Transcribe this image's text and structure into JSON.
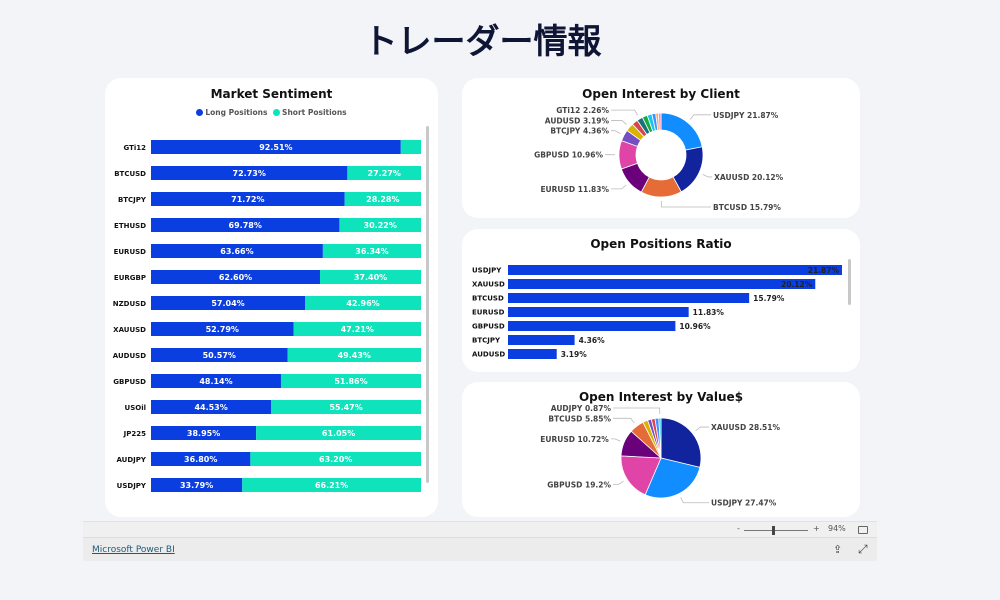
{
  "page_title": "トレーダー情報",
  "colors": {
    "long": "#0a3ee0",
    "short": "#0ee3bb",
    "bar": "#0a3ee0"
  },
  "market_sentiment": {
    "title": "Market Sentiment",
    "legend": [
      "Long Positions",
      "Short Positions"
    ],
    "rows": [
      {
        "symbol": "GTi12",
        "long": 92.51,
        "long_label": "92.51%",
        "short_label": ""
      },
      {
        "symbol": "BTCUSD",
        "long": 72.73,
        "long_label": "72.73%",
        "short_label": "27.27%"
      },
      {
        "symbol": "BTCJPY",
        "long": 71.72,
        "long_label": "71.72%",
        "short_label": "28.28%"
      },
      {
        "symbol": "ETHUSD",
        "long": 69.78,
        "long_label": "69.78%",
        "short_label": "30.22%"
      },
      {
        "symbol": "EURUSD",
        "long": 63.66,
        "long_label": "63.66%",
        "short_label": "36.34%"
      },
      {
        "symbol": "EURGBP",
        "long": 62.6,
        "long_label": "62.60%",
        "short_label": "37.40%"
      },
      {
        "symbol": "NZDUSD",
        "long": 57.04,
        "long_label": "57.04%",
        "short_label": "42.96%"
      },
      {
        "symbol": "XAUUSD",
        "long": 52.79,
        "long_label": "52.79%",
        "short_label": "47.21%"
      },
      {
        "symbol": "AUDUSD",
        "long": 50.57,
        "long_label": "50.57%",
        "short_label": "49.43%"
      },
      {
        "symbol": "GBPUSD",
        "long": 48.14,
        "long_label": "48.14%",
        "short_label": "51.86%"
      },
      {
        "symbol": "USOil",
        "long": 44.53,
        "long_label": "44.53%",
        "short_label": "55.47%"
      },
      {
        "symbol": "JP225",
        "long": 38.95,
        "long_label": "38.95%",
        "short_label": "61.05%"
      },
      {
        "symbol": "AUDJPY",
        "long": 36.8,
        "long_label": "36.80%",
        "short_label": "63.20%"
      },
      {
        "symbol": "USDJPY",
        "long": 33.79,
        "long_label": "33.79%",
        "short_label": "66.21%"
      }
    ]
  },
  "open_interest_client": {
    "title": "Open Interest by Client",
    "slices": [
      {
        "label": "USDJPY 21.87%",
        "value": 21.87,
        "color": "#118dff"
      },
      {
        "label": "XAUUSD 20.12%",
        "value": 20.12,
        "color": "#12239e"
      },
      {
        "label": "BTCUSD 15.79%",
        "value": 15.79,
        "color": "#e66c37"
      },
      {
        "label": "EURUSD 11.83%",
        "value": 11.83,
        "color": "#6b007b"
      },
      {
        "label": "GBPUSD 10.96%",
        "value": 10.96,
        "color": "#e044a7"
      },
      {
        "label": "BTCJPY 4.36%",
        "value": 4.36,
        "color": "#744ec2"
      },
      {
        "label": "AUDUSD 3.19%",
        "value": 3.19,
        "color": "#d9b300"
      },
      {
        "label": "",
        "value": 2.3,
        "color": "#d64550"
      },
      {
        "label": "GTi12 2.26%",
        "value": 2.26,
        "color": "#197278"
      },
      {
        "label": "",
        "value": 2.0,
        "color": "#1aab40"
      },
      {
        "label": "",
        "value": 1.8,
        "color": "#15c6f4"
      },
      {
        "label": "",
        "value": 1.5,
        "color": "#4092ff"
      },
      {
        "label": "",
        "value": 1.0,
        "color": "#ffa058"
      },
      {
        "label": "",
        "value": 1.02,
        "color": "#e88fc0"
      }
    ]
  },
  "open_positions_ratio": {
    "title": "Open Positions Ratio",
    "rows": [
      {
        "symbol": "USDJPY",
        "value": 21.87,
        "label": "21.87%"
      },
      {
        "symbol": "XAUUSD",
        "value": 20.12,
        "label": "20.12%"
      },
      {
        "symbol": "BTCUSD",
        "value": 15.79,
        "label": "15.79%"
      },
      {
        "symbol": "EURUSD",
        "value": 11.83,
        "label": "11.83%"
      },
      {
        "symbol": "GBPUSD",
        "value": 10.96,
        "label": "10.96%"
      },
      {
        "symbol": "BTCJPY",
        "value": 4.36,
        "label": "4.36%"
      },
      {
        "symbol": "AUDUSD",
        "value": 3.19,
        "label": "3.19%"
      }
    ]
  },
  "open_interest_value": {
    "title": "Open Interest by Value$",
    "slices": [
      {
        "label": "XAUUSD 28.51%",
        "value": 28.51,
        "color": "#12239e"
      },
      {
        "label": "USDJPY 27.47%",
        "value": 27.47,
        "color": "#118dff"
      },
      {
        "label": "GBPUSD 19.2%",
        "value": 19.2,
        "color": "#e044a7"
      },
      {
        "label": "EURUSD 10.72%",
        "value": 10.72,
        "color": "#6b007b"
      },
      {
        "label": "BTCUSD 5.85%",
        "value": 5.85,
        "color": "#e66c37"
      },
      {
        "label": "",
        "value": 2.0,
        "color": "#d9b300"
      },
      {
        "label": "",
        "value": 1.5,
        "color": "#744ec2"
      },
      {
        "label": "",
        "value": 1.5,
        "color": "#d64550"
      },
      {
        "label": "",
        "value": 1.51,
        "color": "#4092ff"
      },
      {
        "label": "AUDJPY 0.87%",
        "value": 0.87,
        "color": "#15c6f4"
      }
    ]
  },
  "footer": {
    "brand": "Microsoft Power BI",
    "zoom_minus": "-",
    "zoom_plus": "+",
    "zoom_level": "94%",
    "zoom_percent": 94
  }
}
